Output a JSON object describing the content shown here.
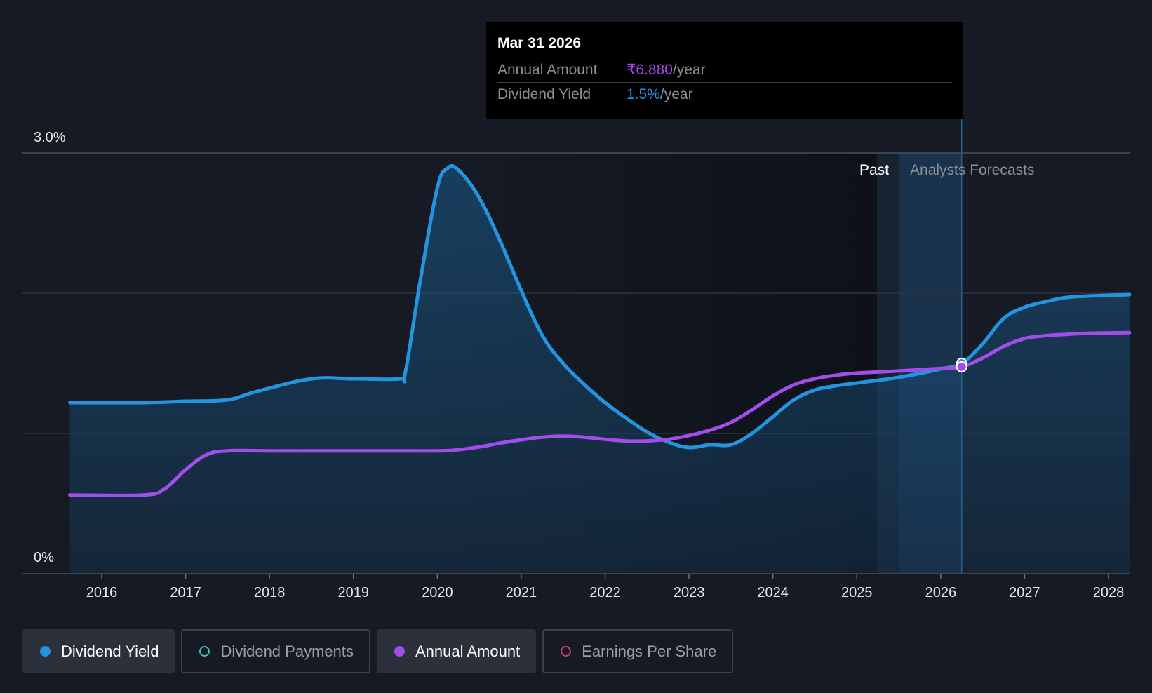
{
  "chart_data": {
    "type": "line",
    "x_axis": {
      "ticks": [
        "2016",
        "2017",
        "2018",
        "2019",
        "2020",
        "2021",
        "2022",
        "2023",
        "2024",
        "2025",
        "2026",
        "2027",
        "2028"
      ],
      "range": [
        2015.2,
        2028.25
      ]
    },
    "y_axis": {
      "range": [
        0,
        3.0
      ],
      "tick_labels": [
        {
          "value": 0,
          "label": "0%"
        },
        {
          "value": 3.0,
          "label": "3.0%"
        }
      ],
      "gridlines": [
        1.0,
        2.0,
        3.0
      ]
    },
    "regions": {
      "past_label": "Past",
      "forecast_label": "Analysts Forecasts",
      "past_end": 2025.5,
      "forecast_start": 2025.5,
      "cursor_x": 2026.25
    },
    "series": [
      {
        "name": "Dividend Yield",
        "color": "#2394df",
        "unit": "%",
        "points": [
          [
            2015.62,
            1.22
          ],
          [
            2016.5,
            1.22
          ],
          [
            2017.0,
            1.23
          ],
          [
            2017.5,
            1.24
          ],
          [
            2017.85,
            1.3
          ],
          [
            2018.5,
            1.39
          ],
          [
            2019.0,
            1.39
          ],
          [
            2019.55,
            1.39
          ],
          [
            2019.62,
            1.44
          ],
          [
            2019.8,
            2.1
          ],
          [
            2020.0,
            2.75
          ],
          [
            2020.12,
            2.89
          ],
          [
            2020.25,
            2.88
          ],
          [
            2020.5,
            2.68
          ],
          [
            2020.75,
            2.37
          ],
          [
            2021.0,
            2.02
          ],
          [
            2021.25,
            1.7
          ],
          [
            2021.5,
            1.5
          ],
          [
            2021.75,
            1.35
          ],
          [
            2022.0,
            1.22
          ],
          [
            2022.25,
            1.11
          ],
          [
            2022.5,
            1.01
          ],
          [
            2022.75,
            0.94
          ],
          [
            2023.0,
            0.9
          ],
          [
            2023.25,
            0.92
          ],
          [
            2023.5,
            0.92
          ],
          [
            2023.75,
            1.0
          ],
          [
            2024.0,
            1.12
          ],
          [
            2024.25,
            1.24
          ],
          [
            2024.5,
            1.31
          ],
          [
            2024.75,
            1.34
          ],
          [
            2025.0,
            1.36
          ],
          [
            2025.5,
            1.4
          ],
          [
            2026.0,
            1.46
          ],
          [
            2026.25,
            1.5
          ],
          [
            2026.5,
            1.64
          ],
          [
            2026.75,
            1.82
          ],
          [
            2027.0,
            1.9
          ],
          [
            2027.25,
            1.94
          ],
          [
            2027.5,
            1.97
          ],
          [
            2027.75,
            1.98
          ],
          [
            2028.25,
            1.99
          ]
        ]
      },
      {
        "name": "Annual Amount",
        "color": "#a24de9",
        "unit": "₹/year",
        "points": [
          [
            2015.62,
            4.4
          ],
          [
            2016.5,
            4.4
          ],
          [
            2016.75,
            4.5
          ],
          [
            2017.0,
            4.82
          ],
          [
            2017.25,
            5.08
          ],
          [
            2017.5,
            5.15
          ],
          [
            2018.0,
            5.15
          ],
          [
            2019.0,
            5.15
          ],
          [
            2020.0,
            5.15
          ],
          [
            2020.25,
            5.17
          ],
          [
            2020.5,
            5.22
          ],
          [
            2020.75,
            5.29
          ],
          [
            2021.0,
            5.35
          ],
          [
            2021.25,
            5.4
          ],
          [
            2021.5,
            5.42
          ],
          [
            2021.75,
            5.4
          ],
          [
            2022.0,
            5.36
          ],
          [
            2022.25,
            5.33
          ],
          [
            2022.5,
            5.33
          ],
          [
            2022.75,
            5.36
          ],
          [
            2023.0,
            5.43
          ],
          [
            2023.25,
            5.53
          ],
          [
            2023.5,
            5.68
          ],
          [
            2023.75,
            5.93
          ],
          [
            2024.0,
            6.22
          ],
          [
            2024.25,
            6.46
          ],
          [
            2024.5,
            6.6
          ],
          [
            2024.75,
            6.68
          ],
          [
            2025.0,
            6.73
          ],
          [
            2025.5,
            6.78
          ],
          [
            2026.0,
            6.84
          ],
          [
            2026.25,
            6.88
          ],
          [
            2026.5,
            7.1
          ],
          [
            2026.75,
            7.4
          ],
          [
            2027.0,
            7.62
          ],
          [
            2027.25,
            7.7
          ],
          [
            2027.5,
            7.74
          ],
          [
            2027.75,
            7.77
          ],
          [
            2028.25,
            7.79
          ]
        ]
      }
    ]
  },
  "tooltip": {
    "date": "Mar 31 2026",
    "annual_amount_label": "Annual Amount",
    "annual_amount_value": "₹6.880",
    "annual_amount_unit": "/year",
    "dividend_yield_label": "Dividend Yield",
    "dividend_yield_value": "1.5%",
    "dividend_yield_unit": "/year",
    "amount_color": "#a24de9",
    "yield_color": "#2394df"
  },
  "legend": [
    {
      "label": "Dividend Yield",
      "color": "#2394df",
      "active": true,
      "hollow": false
    },
    {
      "label": "Dividend Payments",
      "color": "#47bfa8",
      "active": false,
      "hollow": true
    },
    {
      "label": "Annual Amount",
      "color": "#a24de9",
      "active": true,
      "hollow": false
    },
    {
      "label": "Earnings Per Share",
      "color": "#c9426f",
      "active": false,
      "hollow": true
    }
  ]
}
